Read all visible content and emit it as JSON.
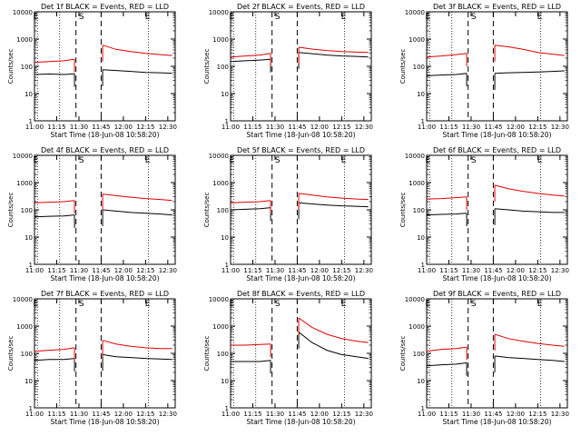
{
  "colors": {
    "events": "#000000",
    "lld": "#e00000",
    "axis": "#000000",
    "background": "#ffffff"
  },
  "shared": {
    "xlabel": "Start Time (18-Jun-08 10:58:20)",
    "ylabel": "Counts/sec",
    "x_ticks": [
      "11:00",
      "11:15",
      "11:30",
      "11:45",
      "12:00",
      "12:15",
      "12:30"
    ],
    "y_ticks": [
      "1",
      "10",
      "100",
      "1000",
      "10000"
    ],
    "markers": {
      "start_label": "S",
      "end_label": "E"
    }
  },
  "chart_data": [
    {
      "type": "line",
      "title": "Det 1f BLACK = Events, RED = LLD",
      "yscale": "log",
      "ylim": [
        1,
        10000
      ],
      "xlim": [
        "11:00",
        "12:35"
      ],
      "dotted_lines": [
        "11:02",
        "11:17",
        "12:17"
      ],
      "dashed_lines": [
        "11:28",
        "11:45"
      ],
      "series": [
        {
          "name": "Events",
          "x": [
            "11:00",
            "11:10",
            "11:20",
            "11:27",
            "11:46",
            "11:55",
            "12:05",
            "12:15",
            "12:25",
            "12:33"
          ],
          "y": [
            50,
            52,
            50,
            53,
            75,
            70,
            65,
            60,
            58,
            55
          ]
        },
        {
          "name": "LLD",
          "x": [
            "11:00",
            "11:10",
            "11:20",
            "11:27",
            "11:46",
            "11:55",
            "12:05",
            "12:15",
            "12:25",
            "12:33"
          ],
          "y": [
            140,
            150,
            160,
            180,
            600,
            420,
            350,
            300,
            270,
            250
          ]
        }
      ]
    },
    {
      "type": "line",
      "title": "Det 2f BLACK = Events, RED = LLD",
      "yscale": "log",
      "ylim": [
        1,
        10000
      ],
      "xlim": [
        "11:00",
        "12:35"
      ],
      "dotted_lines": [
        "11:02",
        "11:17",
        "12:17"
      ],
      "dashed_lines": [
        "11:28",
        "11:45"
      ],
      "series": [
        {
          "name": "Events",
          "x": [
            "11:00",
            "11:10",
            "11:20",
            "11:27",
            "11:46",
            "11:55",
            "12:05",
            "12:15",
            "12:25",
            "12:33"
          ],
          "y": [
            150,
            160,
            170,
            180,
            320,
            290,
            260,
            240,
            230,
            220
          ]
        },
        {
          "name": "LLD",
          "x": [
            "11:00",
            "11:10",
            "11:20",
            "11:27",
            "11:46",
            "11:55",
            "12:05",
            "12:15",
            "12:25",
            "12:33"
          ],
          "y": [
            220,
            240,
            260,
            300,
            500,
            430,
            380,
            350,
            330,
            320
          ]
        }
      ]
    },
    {
      "type": "line",
      "title": "Det 3f BLACK = Events, RED = LLD",
      "yscale": "log",
      "ylim": [
        1,
        10000
      ],
      "xlim": [
        "11:00",
        "12:35"
      ],
      "dotted_lines": [
        "11:02",
        "11:17",
        "12:17"
      ],
      "dashed_lines": [
        "11:28",
        "11:45"
      ],
      "series": [
        {
          "name": "Events",
          "x": [
            "11:00",
            "11:10",
            "11:20",
            "11:27",
            "11:46",
            "11:55",
            "12:05",
            "12:15",
            "12:25",
            "12:33"
          ],
          "y": [
            45,
            48,
            50,
            55,
            55,
            58,
            60,
            62,
            65,
            68
          ]
        },
        {
          "name": "LLD",
          "x": [
            "11:00",
            "11:10",
            "11:20",
            "11:27",
            "11:46",
            "11:55",
            "12:05",
            "12:15",
            "12:25",
            "12:33"
          ],
          "y": [
            220,
            240,
            270,
            300,
            600,
            520,
            420,
            320,
            280,
            250
          ]
        }
      ]
    },
    {
      "type": "line",
      "title": "Det 4f BLACK = Events, RED = LLD",
      "yscale": "log",
      "ylim": [
        1,
        10000
      ],
      "xlim": [
        "11:00",
        "12:35"
      ],
      "dotted_lines": [
        "11:02",
        "11:17",
        "12:17"
      ],
      "dashed_lines": [
        "11:28",
        "11:45"
      ],
      "series": [
        {
          "name": "Events",
          "x": [
            "11:00",
            "11:10",
            "11:20",
            "11:27",
            "11:46",
            "11:55",
            "12:05",
            "12:15",
            "12:25",
            "12:33"
          ],
          "y": [
            55,
            58,
            60,
            65,
            100,
            90,
            80,
            75,
            70,
            65
          ]
        },
        {
          "name": "LLD",
          "x": [
            "11:00",
            "11:10",
            "11:20",
            "11:27",
            "11:46",
            "11:55",
            "12:05",
            "12:15",
            "12:25",
            "12:33"
          ],
          "y": [
            180,
            190,
            200,
            220,
            380,
            330,
            290,
            260,
            240,
            220
          ]
        }
      ]
    },
    {
      "type": "line",
      "title": "Det 5f BLACK = Events, RED = LLD",
      "yscale": "log",
      "ylim": [
        1,
        10000
      ],
      "xlim": [
        "11:00",
        "12:35"
      ],
      "dotted_lines": [
        "11:02",
        "11:17",
        "12:17"
      ],
      "dashed_lines": [
        "11:28",
        "11:45"
      ],
      "series": [
        {
          "name": "Events",
          "x": [
            "11:00",
            "11:10",
            "11:20",
            "11:27",
            "11:46",
            "11:55",
            "12:05",
            "12:15",
            "12:25",
            "12:33"
          ],
          "y": [
            100,
            105,
            110,
            120,
            180,
            165,
            150,
            140,
            135,
            130
          ]
        },
        {
          "name": "LLD",
          "x": [
            "11:00",
            "11:10",
            "11:20",
            "11:27",
            "11:46",
            "11:55",
            "12:05",
            "12:15",
            "12:25",
            "12:33"
          ],
          "y": [
            180,
            190,
            200,
            220,
            400,
            350,
            300,
            270,
            250,
            240
          ]
        }
      ]
    },
    {
      "type": "line",
      "title": "Det 6f BLACK = Events, RED = LLD",
      "yscale": "log",
      "ylim": [
        1,
        10000
      ],
      "xlim": [
        "11:00",
        "12:35"
      ],
      "dotted_lines": [
        "11:02",
        "11:17",
        "12:17"
      ],
      "dashed_lines": [
        "11:28",
        "11:45"
      ],
      "series": [
        {
          "name": "Events",
          "x": [
            "11:00",
            "11:10",
            "11:20",
            "11:27",
            "11:46",
            "11:55",
            "12:05",
            "12:15",
            "12:25",
            "12:33"
          ],
          "y": [
            65,
            68,
            70,
            75,
            110,
            100,
            90,
            85,
            80,
            80
          ]
        },
        {
          "name": "LLD",
          "x": [
            "11:00",
            "11:10",
            "11:20",
            "11:27",
            "11:46",
            "11:55",
            "12:05",
            "12:15",
            "12:25",
            "12:33"
          ],
          "y": [
            250,
            260,
            280,
            300,
            800,
            600,
            480,
            400,
            350,
            320
          ]
        }
      ]
    },
    {
      "type": "line",
      "title": "Det 7f BLACK = Events, RED = LLD",
      "yscale": "log",
      "ylim": [
        1,
        10000
      ],
      "xlim": [
        "11:00",
        "12:35"
      ],
      "dotted_lines": [
        "11:02",
        "11:17",
        "12:17"
      ],
      "dashed_lines": [
        "11:28",
        "11:45"
      ],
      "series": [
        {
          "name": "Events",
          "x": [
            "11:00",
            "11:10",
            "11:20",
            "11:27",
            "11:46",
            "11:55",
            "12:05",
            "12:15",
            "12:25",
            "12:33"
          ],
          "y": [
            55,
            60,
            60,
            65,
            90,
            75,
            70,
            65,
            62,
            60
          ]
        },
        {
          "name": "LLD",
          "x": [
            "11:00",
            "11:10",
            "11:20",
            "11:27",
            "11:46",
            "11:55",
            "12:05",
            "12:15",
            "12:25",
            "12:33"
          ],
          "y": [
            120,
            130,
            140,
            160,
            300,
            220,
            180,
            160,
            150,
            150
          ]
        }
      ]
    },
    {
      "type": "line",
      "title": "Det 8f BLACK = Events, RED = LLD",
      "yscale": "log",
      "ylim": [
        1,
        10000
      ],
      "xlim": [
        "11:00",
        "12:35"
      ],
      "dotted_lines": [
        "11:02",
        "11:17",
        "12:17"
      ],
      "dashed_lines": [
        "11:28",
        "11:45"
      ],
      "series": [
        {
          "name": "Events",
          "x": [
            "11:00",
            "11:10",
            "11:20",
            "11:27",
            "11:46",
            "11:55",
            "12:05",
            "12:15",
            "12:25",
            "12:33"
          ],
          "y": [
            50,
            50,
            50,
            55,
            600,
            250,
            130,
            90,
            75,
            65
          ]
        },
        {
          "name": "LLD",
          "x": [
            "11:00",
            "11:10",
            "11:20",
            "11:27",
            "11:46",
            "11:55",
            "12:05",
            "12:15",
            "12:25",
            "12:33"
          ],
          "y": [
            200,
            200,
            210,
            220,
            2000,
            900,
            500,
            350,
            280,
            250
          ]
        }
      ]
    },
    {
      "type": "line",
      "title": "Det 9f BLACK = Events, RED = LLD",
      "yscale": "log",
      "ylim": [
        1,
        10000
      ],
      "xlim": [
        "11:00",
        "12:35"
      ],
      "dotted_lines": [
        "11:02",
        "11:17",
        "12:17"
      ],
      "dashed_lines": [
        "11:28",
        "11:45"
      ],
      "series": [
        {
          "name": "Events",
          "x": [
            "11:00",
            "11:10",
            "11:20",
            "11:27",
            "11:46",
            "11:55",
            "12:05",
            "12:15",
            "12:25",
            "12:33"
          ],
          "y": [
            35,
            38,
            40,
            45,
            80,
            70,
            65,
            60,
            55,
            50
          ]
        },
        {
          "name": "LLD",
          "x": [
            "11:00",
            "11:10",
            "11:20",
            "11:27",
            "11:46",
            "11:55",
            "12:05",
            "12:15",
            "12:25",
            "12:33"
          ],
          "y": [
            120,
            140,
            150,
            170,
            500,
            350,
            280,
            230,
            200,
            180
          ]
        }
      ]
    }
  ]
}
